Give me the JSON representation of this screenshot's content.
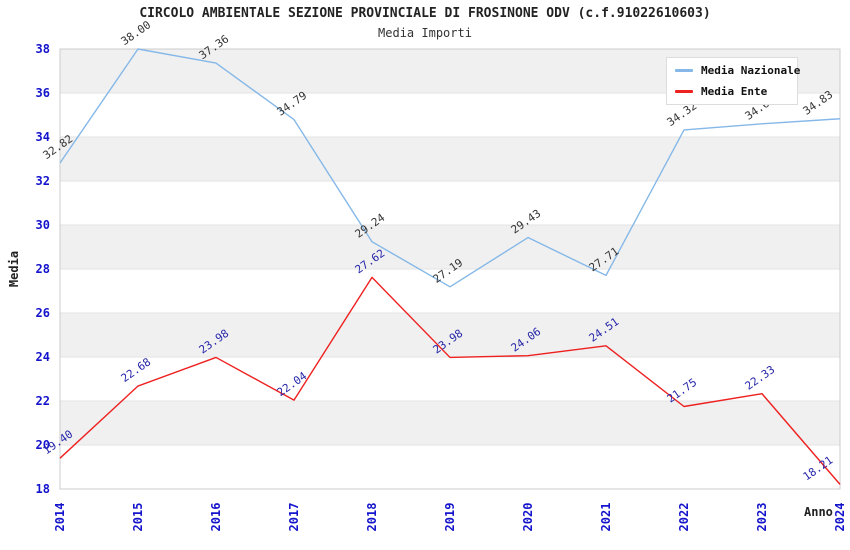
{
  "page": {
    "title": "CIRCOLO AMBIENTALE SEZIONE PROVINCIALE DI FROSINONE ODV (c.f.91022610603)",
    "subtitle": "Media Importi"
  },
  "chart_data": {
    "type": "line",
    "title": "CIRCOLO AMBIENTALE SEZIONE PROVINCIALE DI FROSINONE ODV (c.f.91022610603)",
    "subtitle": "Media Importi",
    "xlabel": "Anno",
    "ylabel": "Media",
    "x": [
      2014,
      2015,
      2016,
      2017,
      2018,
      2019,
      2020,
      2021,
      2022,
      2023,
      2024
    ],
    "series": [
      {
        "name": "Media Nazionale",
        "color": "#85B8E8",
        "label_color": "#333333",
        "values": [
          32.82,
          38.0,
          37.36,
          34.79,
          29.24,
          27.19,
          29.43,
          27.71,
          34.32,
          34.6,
          34.83
        ]
      },
      {
        "name": "Media Ente",
        "color": "#EE2020",
        "label_color": "#2626AA",
        "values": [
          19.4,
          22.68,
          23.98,
          22.04,
          27.62,
          23.98,
          24.06,
          24.51,
          21.75,
          22.33,
          18.21
        ]
      }
    ],
    "ylim": [
      18,
      38
    ],
    "ytick_step": 2,
    "grid": "alternating-horizontal-bands",
    "legend_position": "top-right",
    "styles": {
      "tick_label_color": "#1414CC",
      "band_color": "#F0F0F0",
      "gridline_color": "#E3E3E3",
      "plot_border_color": "#CCCCCC"
    }
  }
}
